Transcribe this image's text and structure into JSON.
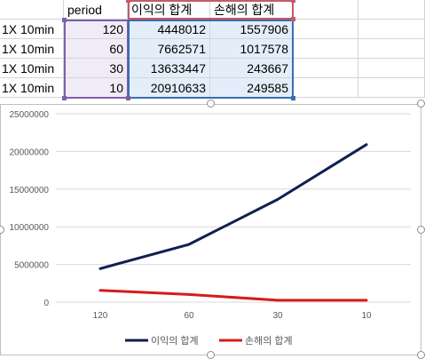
{
  "sheet": {
    "headers": {
      "period": "period",
      "profit": "이익의 합계",
      "loss": "손해의 합계"
    },
    "rows": [
      {
        "label": "1X 10min",
        "period": "120",
        "profit": "4448012",
        "loss": "1557906"
      },
      {
        "label": "1X 10min",
        "period": "60",
        "profit": "7662571",
        "loss": "1017578"
      },
      {
        "label": "1X 10min",
        "period": "30",
        "profit": "13633447",
        "loss": "243667"
      },
      {
        "label": "1X 10min",
        "period": "10",
        "profit": "20910633",
        "loss": "249585"
      }
    ]
  },
  "colors": {
    "profit": "#0f2052",
    "loss": "#d41c1c",
    "period_range": "#7f60a8",
    "value_range": "#3a6db0",
    "header_range": "#c55a6a"
  },
  "chart_data": {
    "type": "line",
    "categories": [
      "120",
      "60",
      "30",
      "10"
    ],
    "series": [
      {
        "name": "이익의 합계",
        "values": [
          4448012,
          7662571,
          13633447,
          20910633
        ]
      },
      {
        "name": "손해의 합계",
        "values": [
          1557906,
          1017578,
          243667,
          249585
        ]
      }
    ],
    "yticks": [
      "0",
      "5000000",
      "10000000",
      "15000000",
      "20000000",
      "25000000"
    ],
    "ylim": [
      0,
      25000000
    ],
    "grid": true,
    "legend": "bottom"
  }
}
